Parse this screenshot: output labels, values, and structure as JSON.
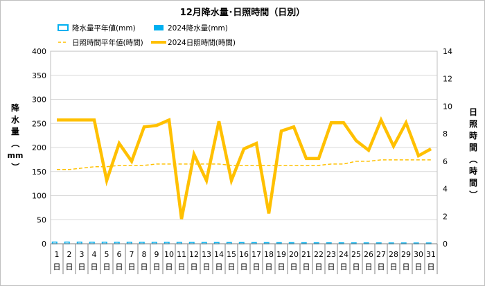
{
  "chart_data": {
    "type": "bar-line-combo",
    "title": "12月降水量･日照時間（日別）",
    "categories": [
      "1",
      "2",
      "3",
      "4",
      "5",
      "6",
      "7",
      "8",
      "9",
      "10",
      "11",
      "12",
      "13",
      "14",
      "15",
      "16",
      "17",
      "18",
      "19",
      "20",
      "21",
      "22",
      "23",
      "24",
      "25",
      "26",
      "27",
      "28",
      "29",
      "30",
      "31"
    ],
    "category_suffix": "日",
    "left_axis": {
      "label_chars": [
        "降",
        "水",
        "量",
        "（",
        "mm",
        "）"
      ],
      "ylim": [
        0,
        400
      ],
      "ticks": [
        "0",
        "50",
        "100",
        "150",
        "200",
        "250",
        "300",
        "350",
        "400"
      ]
    },
    "right_axis": {
      "label_chars": [
        "日",
        "照",
        "時",
        "間",
        "（",
        "時",
        "間",
        "）"
      ],
      "ylim": [
        0,
        14
      ],
      "ticks": [
        "0",
        "2",
        "4",
        "6",
        "8",
        "10",
        "12",
        "14"
      ]
    },
    "legend": [
      {
        "name": "降水量平年値(mm)",
        "style": "hollow-bar"
      },
      {
        "name": "2024降水量(mm)",
        "style": "solid-bar"
      },
      {
        "name": "日照時間平年値(時間)",
        "style": "dashed-line"
      },
      {
        "name": "2024日照時間(時間)",
        "style": "thick-line"
      }
    ],
    "series": [
      {
        "name": "降水量平年値(mm)",
        "axis": "left",
        "values": [
          3.5,
          3.5,
          3.4,
          3.3,
          3.3,
          3.2,
          3.2,
          3.1,
          3.0,
          3.0,
          2.9,
          2.8,
          2.7,
          2.6,
          2.6,
          2.5,
          2.4,
          2.3,
          2.2,
          2.2,
          2.1,
          2.0,
          1.9,
          1.9,
          1.8,
          1.7,
          1.7,
          1.6,
          1.6,
          1.5,
          1.5
        ]
      },
      {
        "name": "2024降水量(mm)",
        "axis": "left",
        "values": [
          0,
          0,
          0,
          0,
          0,
          0,
          0,
          0,
          0,
          0,
          0,
          0,
          0,
          0,
          0,
          0,
          0,
          0,
          0,
          0,
          0,
          0,
          0,
          0,
          0,
          0,
          0,
          0,
          0,
          0,
          0
        ]
      },
      {
        "name": "日照時間平年値(時間)",
        "axis": "right",
        "values": [
          5.4,
          5.4,
          5.5,
          5.6,
          5.6,
          5.7,
          5.7,
          5.7,
          5.8,
          5.8,
          5.8,
          5.8,
          5.8,
          5.8,
          5.7,
          5.7,
          5.7,
          5.7,
          5.7,
          5.7,
          5.7,
          5.7,
          5.8,
          5.8,
          6.0,
          6.0,
          6.1,
          6.1,
          6.1,
          6.1,
          6.1
        ]
      },
      {
        "name": "2024日照時間(時間)",
        "axis": "right",
        "values": [
          9.0,
          9.0,
          9.0,
          9.0,
          4.6,
          7.3,
          6.0,
          8.5,
          8.6,
          9.0,
          1.8,
          6.5,
          4.6,
          8.9,
          4.6,
          6.9,
          7.3,
          2.2,
          8.2,
          8.5,
          6.2,
          6.2,
          8.8,
          8.8,
          7.5,
          6.8,
          9.0,
          7.1,
          8.8,
          6.4,
          6.9
        ]
      }
    ],
    "colors": {
      "precip_normal": "#00b0f0",
      "precip_2024": "#00b0f0",
      "sun_normal": "#ffc000",
      "sun_2024": "#ffc000",
      "grid": "#d9d9d9"
    },
    "grid": true
  }
}
